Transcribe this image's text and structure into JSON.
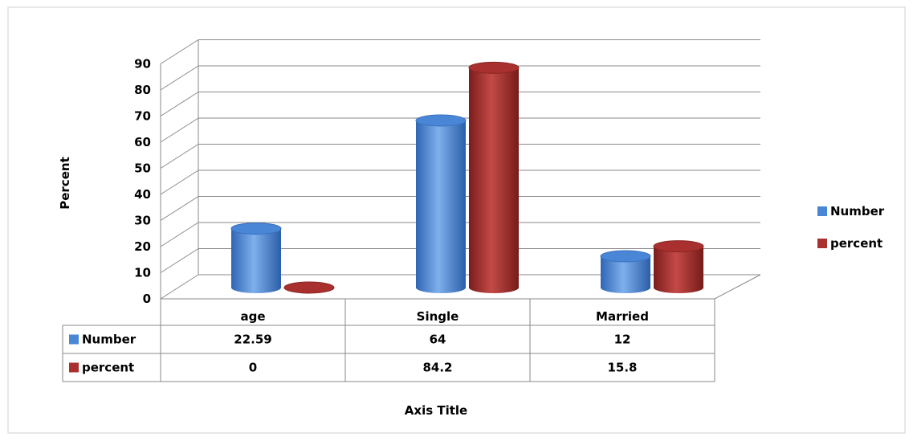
{
  "chart_data": {
    "type": "bar",
    "categories": [
      "age",
      "Single",
      "Married"
    ],
    "series": [
      {
        "name": "Number",
        "values": [
          22.59,
          64,
          12
        ],
        "color": "#4A86D6"
      },
      {
        "name": "percent",
        "values": [
          0,
          84.2,
          15.8
        ],
        "color": "#A8302E"
      }
    ],
    "ylabel": "Percent",
    "xlabel": "Axis Title",
    "ylim": [
      0,
      90
    ],
    "yticks": [
      0,
      10,
      20,
      30,
      40,
      50,
      60,
      70,
      80,
      90
    ],
    "grid": true,
    "legend": "right",
    "data_table": {
      "rows": [
        {
          "label": "Number",
          "values": [
            "22.59",
            "64",
            "12"
          ]
        },
        {
          "label": "percent",
          "values": [
            "0",
            "84.2",
            "15.8"
          ]
        }
      ]
    }
  }
}
